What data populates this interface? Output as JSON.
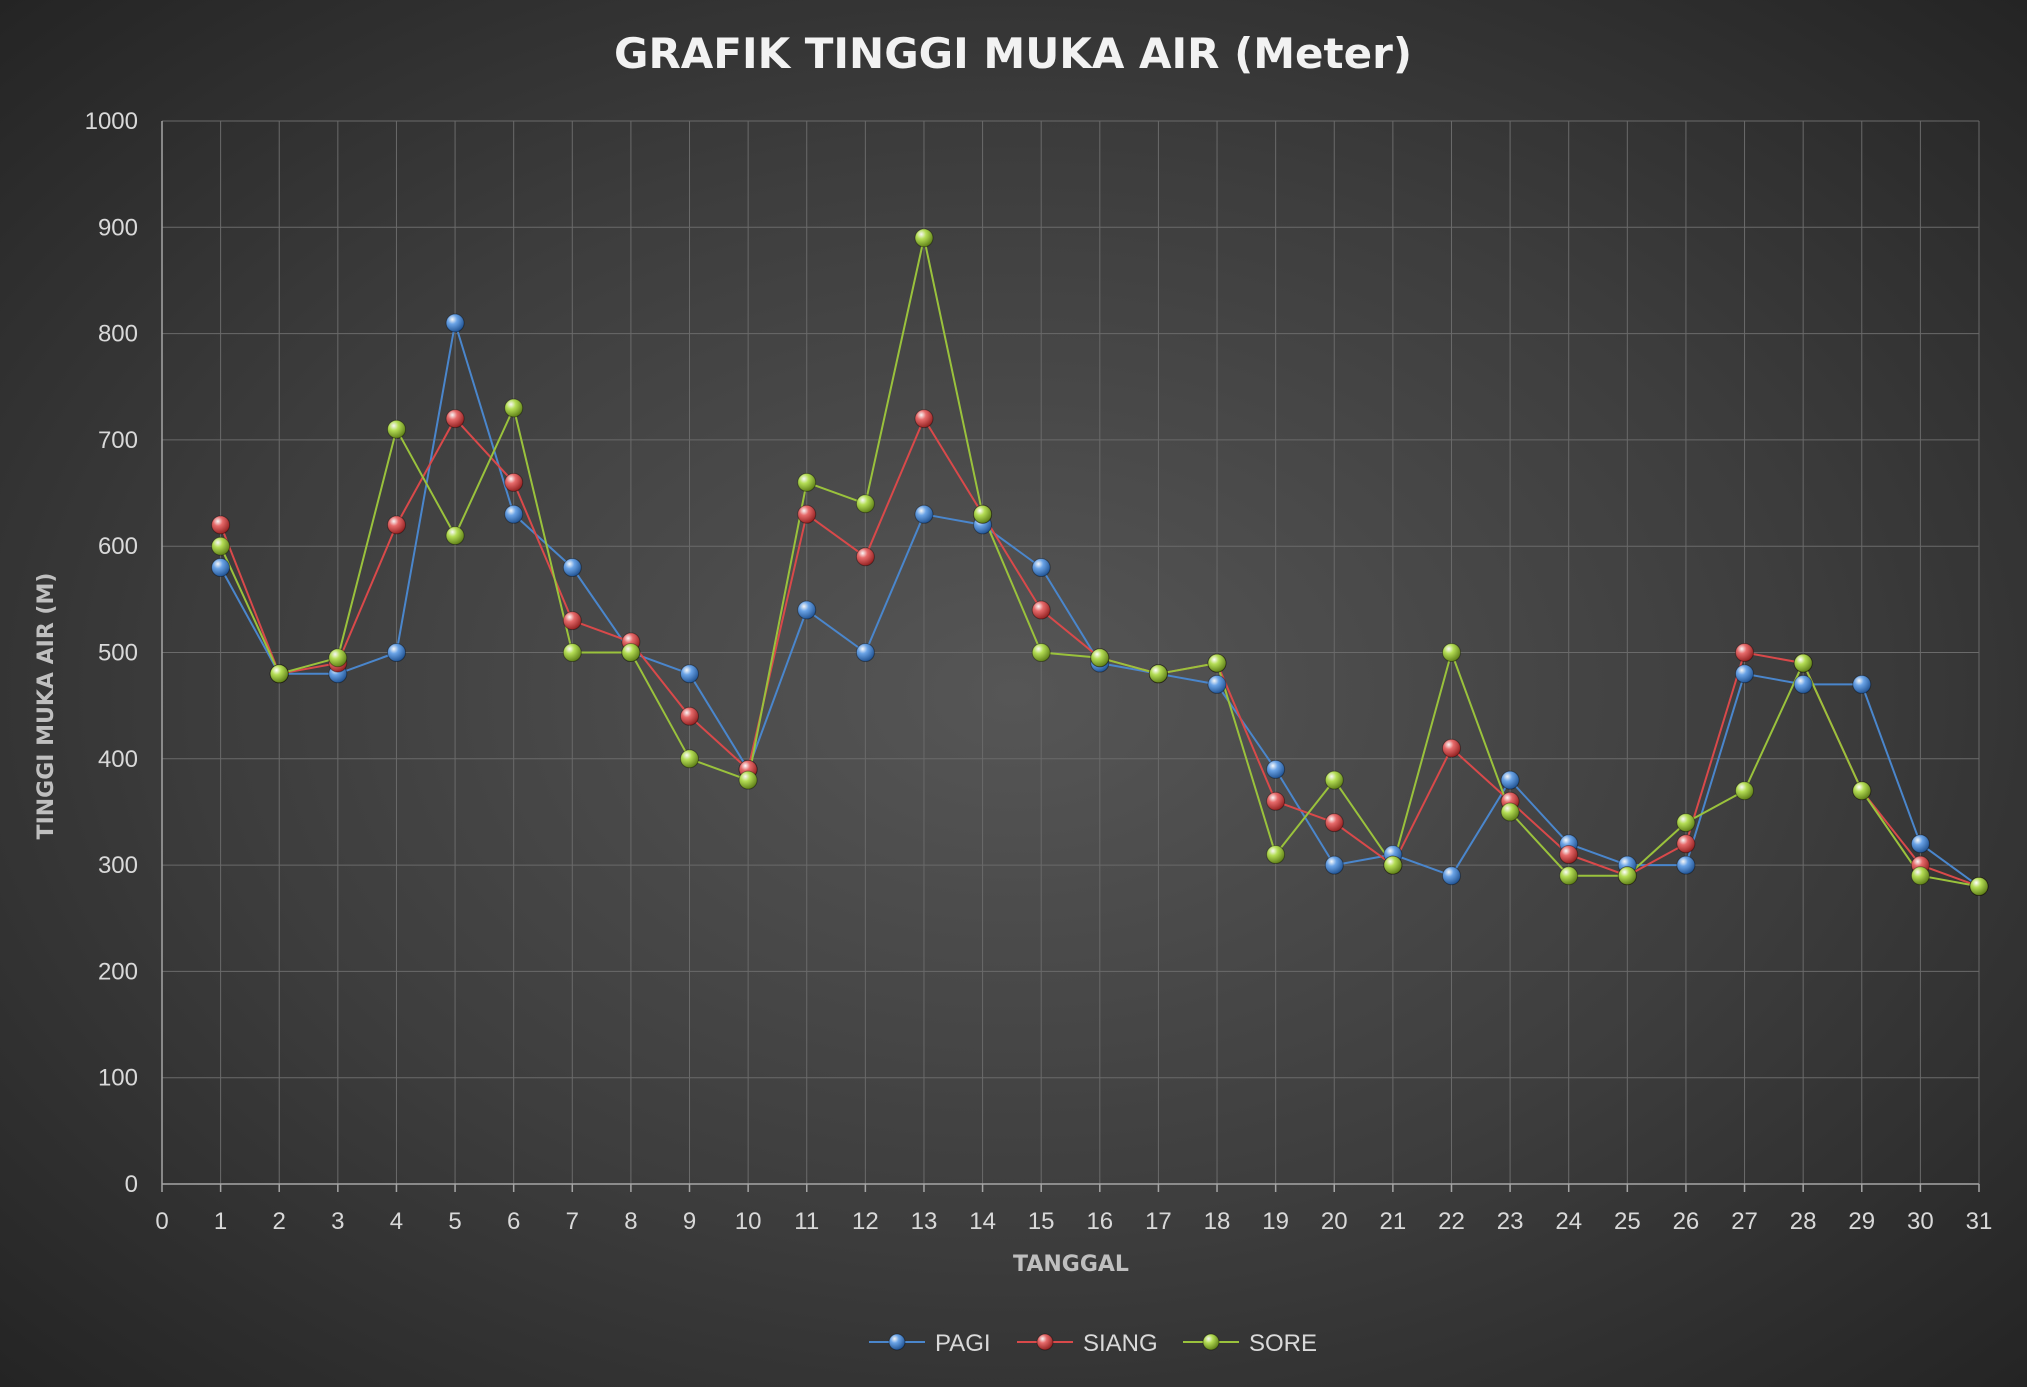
{
  "chart_data": {
    "type": "line",
    "title": "GRAFIK TINGGI MUKA AIR (Meter)",
    "xlabel": "TANGGAL",
    "ylabel": "TINGGI MUKA AIR (M)",
    "xlim": [
      0,
      31
    ],
    "ylim": [
      0,
      1000
    ],
    "x_ticks": [
      0,
      1,
      2,
      3,
      4,
      5,
      6,
      7,
      8,
      9,
      10,
      11,
      12,
      13,
      14,
      15,
      16,
      17,
      18,
      19,
      20,
      21,
      22,
      23,
      24,
      25,
      26,
      27,
      28,
      29,
      30,
      31
    ],
    "y_ticks": [
      0,
      100,
      200,
      300,
      400,
      500,
      600,
      700,
      800,
      900,
      1000
    ],
    "grid": true,
    "legend_position": "bottom",
    "x": [
      1,
      2,
      3,
      4,
      5,
      6,
      7,
      8,
      9,
      10,
      11,
      12,
      13,
      14,
      15,
      16,
      17,
      18,
      19,
      20,
      21,
      22,
      23,
      24,
      25,
      26,
      27,
      28,
      29,
      30,
      31
    ],
    "series": [
      {
        "name": "PAGI",
        "color": "#4a86cc",
        "values": [
          580,
          480,
          480,
          500,
          810,
          630,
          580,
          500,
          480,
          390,
          540,
          500,
          630,
          620,
          580,
          490,
          480,
          470,
          390,
          300,
          310,
          290,
          380,
          320,
          300,
          300,
          480,
          470,
          470,
          320,
          280
        ]
      },
      {
        "name": "SIANG",
        "color": "#d9494a",
        "values": [
          620,
          480,
          490,
          620,
          720,
          660,
          530,
          510,
          440,
          390,
          630,
          590,
          720,
          630,
          540,
          495,
          480,
          490,
          360,
          340,
          300,
          410,
          360,
          310,
          290,
          320,
          500,
          490,
          370,
          300,
          280
        ]
      },
      {
        "name": "SORE",
        "color": "#9ac23c",
        "values": [
          600,
          480,
          495,
          710,
          610,
          730,
          500,
          500,
          400,
          380,
          660,
          640,
          890,
          630,
          500,
          495,
          480,
          490,
          310,
          380,
          300,
          500,
          350,
          290,
          290,
          340,
          370,
          490,
          370,
          290,
          280
        ]
      }
    ]
  }
}
